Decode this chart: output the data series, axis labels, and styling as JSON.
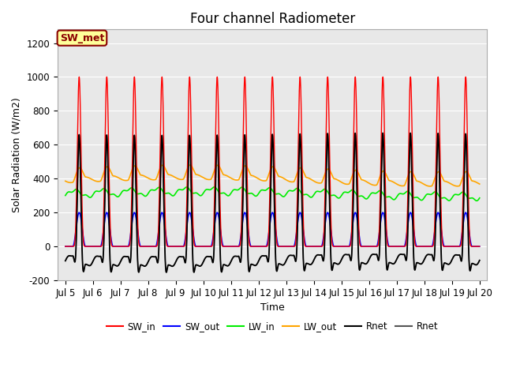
{
  "title": "Four channel Radiometer",
  "xlabel": "Time",
  "ylabel": "Solar Radiation (W/m2)",
  "ylim": [
    -200,
    1280
  ],
  "xlim_days": [
    4.72,
    20.28
  ],
  "xtick_labels": [
    "Jul 5",
    "Jul 6",
    "Jul 7",
    "Jul 8",
    "Jul 9",
    "Jul 10",
    "Jul 11",
    "Jul 12",
    "Jul 13",
    "Jul 14",
    "Jul 15",
    "Jul 16",
    "Jul 17",
    "Jul 18",
    "Jul 19",
    "Jul 20"
  ],
  "xtick_positions": [
    5,
    6,
    7,
    8,
    9,
    10,
    11,
    12,
    13,
    14,
    15,
    16,
    17,
    18,
    19,
    20
  ],
  "ytick_labels": [
    "-200",
    "0",
    "200",
    "400",
    "600",
    "800",
    "1000",
    "1200"
  ],
  "ytick_positions": [
    -200,
    0,
    200,
    400,
    600,
    800,
    1000,
    1200
  ],
  "colors": {
    "SW_in": "#FF0000",
    "SW_out": "#0000FF",
    "LW_in": "#00EE00",
    "LW_out": "#FFA500",
    "Rnet": "#000000",
    "Rnet2": "#555555"
  },
  "annotation_text": "SW_met",
  "annotation_bg": "#FFFF99",
  "annotation_border": "#8B0000",
  "plot_bg": "#E8E8E8",
  "title_fontsize": 12,
  "axis_fontsize": 9,
  "tick_fontsize": 8.5,
  "legend_fontsize": 8.5
}
